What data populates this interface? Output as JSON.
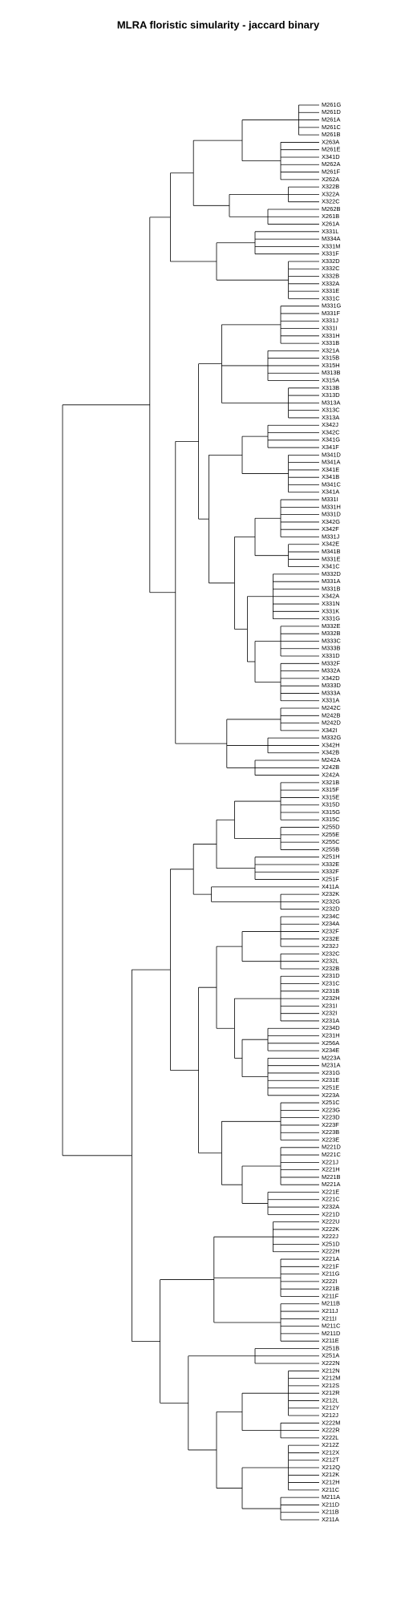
{
  "chart_data": {
    "type": "dendrogram",
    "title": "MLRA floristic simularity - jaccard binary",
    "tree": {
      "h": 1,
      "c": [
        {
          "h": 0.66,
          "c": [
            {
              "h": 0.58,
              "c": [
                {
                  "h": 0.49,
                  "c": [
                    {
                      "h": 0.3,
                      "c": [
                        {
                          "h": 0.08,
                          "c": [
                            "M261G",
                            "M261D",
                            "M261A",
                            "M261C",
                            "M261B"
                          ]
                        },
                        {
                          "h": 0.15,
                          "c": [
                            "X263A",
                            "M261E",
                            "X341D",
                            "M262A",
                            "M261F",
                            "X262A"
                          ]
                        }
                      ]
                    },
                    {
                      "h": 0.35,
                      "c": [
                        {
                          "h": 0.12,
                          "c": [
                            "X322B",
                            "X322A",
                            "X322C"
                          ]
                        },
                        {
                          "h": 0.2,
                          "c": [
                            "M262B",
                            "X261B",
                            "X261A"
                          ]
                        }
                      ]
                    }
                  ]
                },
                {
                  "h": 0.4,
                  "c": [
                    {
                      "h": 0.25,
                      "c": [
                        "X331L",
                        "M334A",
                        "X331M",
                        "X331F"
                      ]
                    },
                    {
                      "h": 0.12,
                      "c": [
                        "X332D",
                        "X332C",
                        "X332B",
                        "X332A",
                        "X331E",
                        "X331C"
                      ]
                    }
                  ]
                }
              ]
            },
            {
              "h": 0.56,
              "c": [
                {
                  "h": 0.47,
                  "c": [
                    {
                      "h": 0.38,
                      "c": [
                        {
                          "h": 0.15,
                          "c": [
                            "M331G",
                            "M331F",
                            "X331J",
                            "X331I",
                            "X331H",
                            "X331B"
                          ]
                        },
                        {
                          "h": 0.2,
                          "c": [
                            "X321A",
                            "X315B",
                            "X315H",
                            "M313B",
                            "X315A"
                          ]
                        },
                        {
                          "h": 0.12,
                          "c": [
                            "X313B",
                            "X313D",
                            "M313A",
                            "X313C",
                            "X313A"
                          ]
                        }
                      ]
                    },
                    {
                      "h": 0.43,
                      "c": [
                        {
                          "h": 0.3,
                          "c": [
                            {
                              "h": 0.2,
                              "c": [
                                "X342J",
                                "X342C",
                                "X341G",
                                "X341F"
                              ]
                            },
                            {
                              "h": 0.12,
                              "c": [
                                "M341D",
                                "M341A",
                                "X341E",
                                "X341B",
                                "M341C",
                                "X341A"
                              ]
                            }
                          ]
                        },
                        {
                          "h": 0.33,
                          "c": [
                            {
                              "h": 0.25,
                              "c": [
                                {
                                  "h": 0.15,
                                  "c": [
                                    "M331I",
                                    "M331H",
                                    "M331D",
                                    "X342G",
                                    "X342F",
                                    "M331J"
                                  ]
                                },
                                {
                                  "h": 0.12,
                                  "c": [
                                    "X342E",
                                    "M341B",
                                    "M331E",
                                    "X341C"
                                  ]
                                }
                              ]
                            },
                            {
                              "h": 0.28,
                              "c": [
                                {
                                  "h": 0.18,
                                  "c": [
                                    "M332D",
                                    "M331A",
                                    "M331B",
                                    "X342A",
                                    "X331N",
                                    "X331K",
                                    "X331G"
                                  ]
                                },
                                {
                                  "h": 0.25,
                                  "c": [
                                    {
                                      "h": 0.15,
                                      "c": [
                                        "M332E",
                                        "M332B",
                                        "M333C",
                                        "M333B",
                                        "X331D"
                                      ]
                                    },
                                    {
                                      "h": 0.15,
                                      "c": [
                                        "M332F",
                                        "M332A",
                                        "X342D",
                                        "M333D",
                                        "M333A",
                                        "X331A"
                                      ]
                                    }
                                  ]
                                }
                              ]
                            }
                          ]
                        }
                      ]
                    }
                  ]
                },
                {
                  "h": 0.36,
                  "c": [
                    {
                      "h": 0.15,
                      "c": [
                        "M242C",
                        "M242B",
                        "M242D",
                        "X342I"
                      ]
                    },
                    {
                      "h": 0.2,
                      "c": [
                        "M332G",
                        "X342H",
                        "X342B"
                      ]
                    },
                    {
                      "h": 0.25,
                      "c": [
                        "M242A",
                        "X242B",
                        "X242A"
                      ]
                    }
                  ]
                }
              ]
            }
          ]
        },
        {
          "h": 0.73,
          "c": [
            {
              "h": 0.58,
              "c": [
                {
                  "h": 0.49,
                  "c": [
                    {
                      "h": 0.4,
                      "c": [
                        {
                          "h": 0.33,
                          "c": [
                            {
                              "h": 0.15,
                              "c": [
                                "X321B",
                                "X315F",
                                "X315E",
                                "X315D",
                                "X315G",
                                "X315C"
                              ]
                            },
                            {
                              "h": 0.15,
                              "c": [
                                "X255D",
                                "X255E",
                                "X255C",
                                "X255B"
                              ]
                            }
                          ]
                        },
                        {
                          "h": 0.25,
                          "c": [
                            "X251H",
                            "X332E",
                            "X332F",
                            "X251F"
                          ]
                        }
                      ]
                    },
                    {
                      "h": 0.42,
                      "c": [
                        "X411A",
                        {
                          "h": 0.15,
                          "c": [
                            "X232K",
                            "X232G",
                            "X232D"
                          ]
                        }
                      ]
                    }
                  ]
                },
                {
                  "h": 0.47,
                  "c": [
                    {
                      "h": 0.4,
                      "c": [
                        {
                          "h": 0.3,
                          "c": [
                            {
                              "h": 0.15,
                              "c": [
                                "X234C",
                                "X234A",
                                "X232F",
                                "X232E",
                                "X232J"
                              ]
                            },
                            {
                              "h": 0.15,
                              "c": [
                                "X232C",
                                "X232L",
                                "X232B"
                              ]
                            }
                          ]
                        },
                        {
                          "h": 0.33,
                          "c": [
                            {
                              "h": 0.15,
                              "c": [
                                "X231D",
                                "X231C",
                                "X231B",
                                "X232H",
                                "X231I",
                                "X232I",
                                "X231A"
                              ]
                            },
                            {
                              "h": 0.3,
                              "c": [
                                {
                                  "h": 0.2,
                                  "c": [
                                    "X234D",
                                    "X231H",
                                    "X256A",
                                    "X234E"
                                  ]
                                },
                                {
                                  "h": 0.2,
                                  "c": [
                                    "M223A",
                                    "M231A",
                                    "X231G",
                                    "X231E",
                                    "X251E",
                                    "X223A"
                                  ]
                                }
                              ]
                            }
                          ]
                        }
                      ]
                    },
                    {
                      "h": 0.38,
                      "c": [
                        {
                          "h": 0.15,
                          "c": [
                            "X251C",
                            "X223G",
                            "X223D",
                            "X223F",
                            "X223B",
                            "X223E"
                          ]
                        },
                        {
                          "h": 0.3,
                          "c": [
                            {
                              "h": 0.15,
                              "c": [
                                "M221D",
                                "M221C",
                                "X221J",
                                "X221H",
                                "M221B",
                                "M221A"
                              ]
                            },
                            {
                              "h": 0.2,
                              "c": [
                                "X221E",
                                "X221C",
                                "X232A",
                                "X221D"
                              ]
                            }
                          ]
                        }
                      ]
                    }
                  ]
                }
              ]
            },
            {
              "h": 0.62,
              "c": [
                {
                  "h": 0.41,
                  "c": [
                    {
                      "h": 0.18,
                      "c": [
                        "X222U",
                        "X222K",
                        "X222J",
                        "X251D",
                        "X222H"
                      ]
                    },
                    {
                      "h": 0.15,
                      "c": [
                        "X221A",
                        "X221F",
                        "X211G",
                        "X222I",
                        "X221B",
                        "X211F"
                      ]
                    },
                    {
                      "h": 0.15,
                      "c": [
                        "M211B",
                        "X211J",
                        "X211I",
                        "M211C",
                        "M211D",
                        "X211E"
                      ]
                    }
                  ]
                },
                {
                  "h": 0.51,
                  "c": [
                    {
                      "h": 0.25,
                      "c": [
                        "X251B",
                        "X251A",
                        "X222N"
                      ]
                    },
                    {
                      "h": 0.4,
                      "c": [
                        {
                          "h": 0.3,
                          "c": [
                            {
                              "h": 0.12,
                              "c": [
                                "X212N",
                                "X212M",
                                "X212S",
                                "X212R",
                                "X212L",
                                "X212Y",
                                "X212J"
                              ]
                            },
                            {
                              "h": 0.15,
                              "c": [
                                "X222M",
                                "X222R",
                                "X222L"
                              ]
                            }
                          ]
                        },
                        {
                          "h": 0.3,
                          "c": [
                            {
                              "h": 0.12,
                              "c": [
                                "X212Z",
                                "X212X",
                                "X212T",
                                "X212Q",
                                "X212K",
                                "X212H",
                                "X211C"
                              ]
                            },
                            {
                              "h": 0.15,
                              "c": [
                                "M211A",
                                "X211D",
                                "X211B",
                                "X211A"
                              ]
                            }
                          ]
                        }
                      ]
                    }
                  ]
                }
              ]
            }
          ]
        }
      ]
    }
  }
}
